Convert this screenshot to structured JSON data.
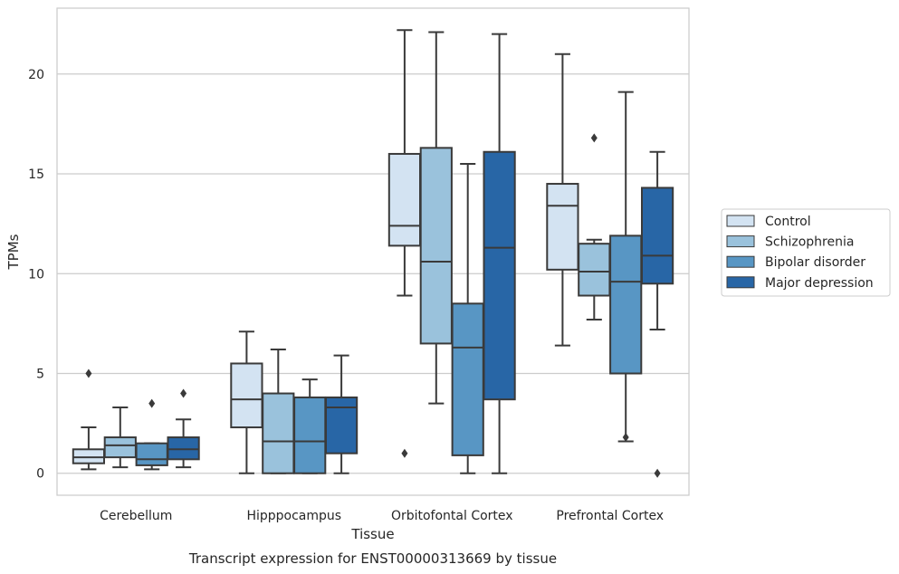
{
  "chart_data": {
    "type": "box",
    "xlabel": "Tissue",
    "ylabel": "TPMs",
    "caption": "Transcript expression for ENST00000313669 by tissue",
    "ylim": [
      -1.1,
      23.3
    ],
    "yticks": [
      0,
      5,
      10,
      15,
      20
    ],
    "grid": "horizontal",
    "legend_position": "right",
    "categories": [
      "Cerebellum",
      "Hipppocampus",
      "Orbitofontal Cortex",
      "Prefrontal Cortex"
    ],
    "series": [
      {
        "name": "Control",
        "color": "#d3e3f2",
        "boxes": [
          {
            "whisker_low": 0.2,
            "q1": 0.5,
            "median": 0.8,
            "q3": 1.2,
            "whisker_high": 2.3,
            "outliers": [
              5.0
            ]
          },
          {
            "whisker_low": 0.0,
            "q1": 2.3,
            "median": 3.7,
            "q3": 5.5,
            "whisker_high": 7.1,
            "outliers": []
          },
          {
            "whisker_low": 8.9,
            "q1": 11.4,
            "median": 12.4,
            "q3": 16.0,
            "whisker_high": 22.2,
            "outliers": [
              1.0
            ]
          },
          {
            "whisker_low": 6.4,
            "q1": 10.2,
            "median": 13.4,
            "q3": 14.5,
            "whisker_high": 21.0,
            "outliers": []
          }
        ]
      },
      {
        "name": "Schizophrenia",
        "color": "#9ac2dc",
        "boxes": [
          {
            "whisker_low": 0.3,
            "q1": 0.8,
            "median": 1.4,
            "q3": 1.8,
            "whisker_high": 3.3,
            "outliers": []
          },
          {
            "whisker_low": 0.0,
            "q1": 0.0,
            "median": 1.6,
            "q3": 4.0,
            "whisker_high": 6.2,
            "outliers": []
          },
          {
            "whisker_low": 3.5,
            "q1": 6.5,
            "median": 10.6,
            "q3": 16.3,
            "whisker_high": 22.1,
            "outliers": []
          },
          {
            "whisker_low": 7.7,
            "q1": 8.9,
            "median": 10.1,
            "q3": 11.5,
            "whisker_high": 11.7,
            "outliers": [
              16.8
            ]
          }
        ]
      },
      {
        "name": "Bipolar disorder",
        "color": "#5896c4",
        "boxes": [
          {
            "whisker_low": 0.2,
            "q1": 0.4,
            "median": 0.7,
            "q3": 1.5,
            "whisker_high": 1.5,
            "outliers": [
              3.5
            ]
          },
          {
            "whisker_low": 0.0,
            "q1": 0.0,
            "median": 1.6,
            "q3": 3.8,
            "whisker_high": 4.7,
            "outliers": []
          },
          {
            "whisker_low": 0.0,
            "q1": 0.9,
            "median": 6.3,
            "q3": 8.5,
            "whisker_high": 15.5,
            "outliers": []
          },
          {
            "whisker_low": 1.6,
            "q1": 5.0,
            "median": 9.6,
            "q3": 11.9,
            "whisker_high": 19.1,
            "outliers": [
              1.8
            ]
          }
        ]
      },
      {
        "name": "Major depression",
        "color": "#2866a6",
        "boxes": [
          {
            "whisker_low": 0.3,
            "q1": 0.7,
            "median": 1.2,
            "q3": 1.8,
            "whisker_high": 2.7,
            "outliers": [
              4.0
            ]
          },
          {
            "whisker_low": 0.0,
            "q1": 1.0,
            "median": 3.3,
            "q3": 3.8,
            "whisker_high": 5.9,
            "outliers": []
          },
          {
            "whisker_low": 0.0,
            "q1": 3.7,
            "median": 11.3,
            "q3": 16.1,
            "whisker_high": 22.0,
            "outliers": []
          },
          {
            "whisker_low": 7.2,
            "q1": 9.5,
            "median": 10.9,
            "q3": 14.3,
            "whisker_high": 16.1,
            "outliers": [
              0.0
            ]
          }
        ]
      }
    ]
  }
}
